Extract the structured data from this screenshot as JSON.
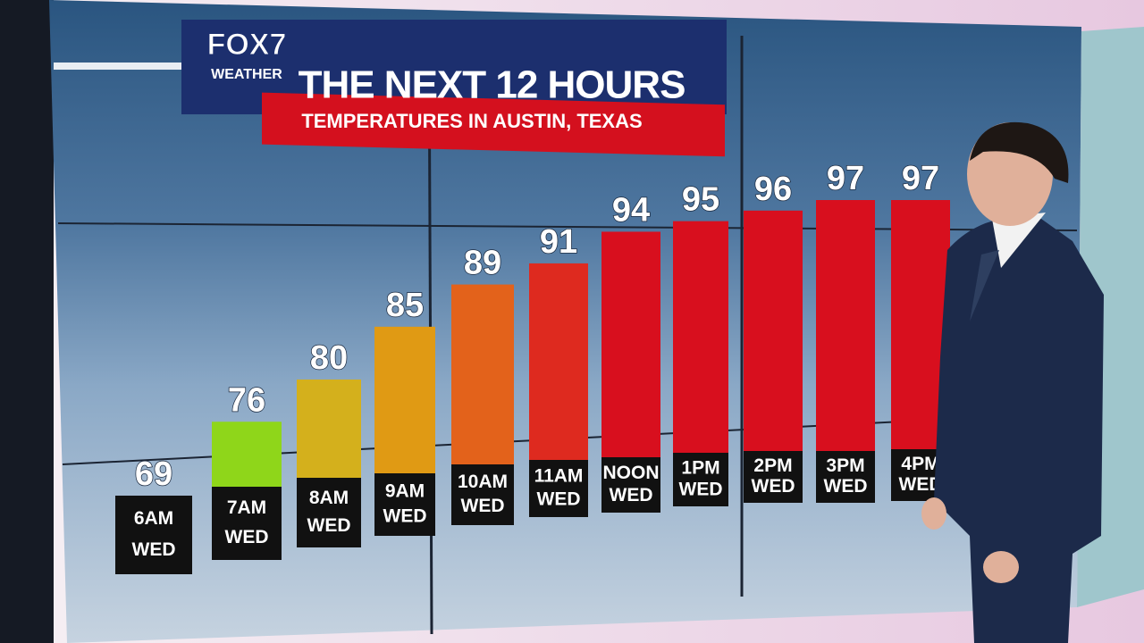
{
  "brand": "FOX7",
  "brand_sub": "WEATHER",
  "chart_data": {
    "type": "bar",
    "title": "THE NEXT 12 HOURS",
    "subtitle": "TEMPERATURES IN AUSTIN, TEXAS",
    "categories": [
      "6AM",
      "7AM",
      "8AM",
      "9AM",
      "10AM",
      "11AM",
      "NOON",
      "1PM",
      "2PM",
      "3PM",
      "4PM"
    ],
    "days": [
      "WED",
      "WED",
      "WED",
      "WED",
      "WED",
      "WED",
      "WED",
      "WED",
      "WED",
      "WED",
      "WED"
    ],
    "values": [
      69,
      76,
      80,
      85,
      89,
      91,
      94,
      95,
      96,
      97,
      97
    ],
    "colors": [
      "#9ab8d0",
      "#8fd61a",
      "#d4b01c",
      "#e09a14",
      "#e3621b",
      "#de2a1f",
      "#d80f1e",
      "#d80f1e",
      "#d80f1e",
      "#d80f1e",
      "#d80f1e"
    ]
  }
}
